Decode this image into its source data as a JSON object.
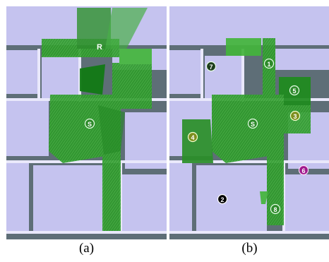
{
  "panels": [
    {
      "caption": "(a)",
      "markers": [
        {
          "label": "R",
          "style": "text"
        },
        {
          "label": "S",
          "style": "green"
        }
      ]
    },
    {
      "caption": "(b)",
      "markers": [
        {
          "label": "1",
          "style": "green"
        },
        {
          "label": "7",
          "style": "dark"
        },
        {
          "label": "5",
          "style": "green"
        },
        {
          "label": "3",
          "style": "olive"
        },
        {
          "label": "S",
          "style": "green"
        },
        {
          "label": "4",
          "style": "olive"
        },
        {
          "label": "6",
          "style": "magenta"
        },
        {
          "label": "2",
          "style": "black"
        },
        {
          "label": "8",
          "style": "green"
        }
      ]
    }
  ],
  "colors": {
    "floor": "#c5c3ef",
    "wall": "#5e6e77",
    "wall_top": "#e9e8fb",
    "coverage": "#2f9a2c",
    "coverage_dark": "#147a16"
  }
}
